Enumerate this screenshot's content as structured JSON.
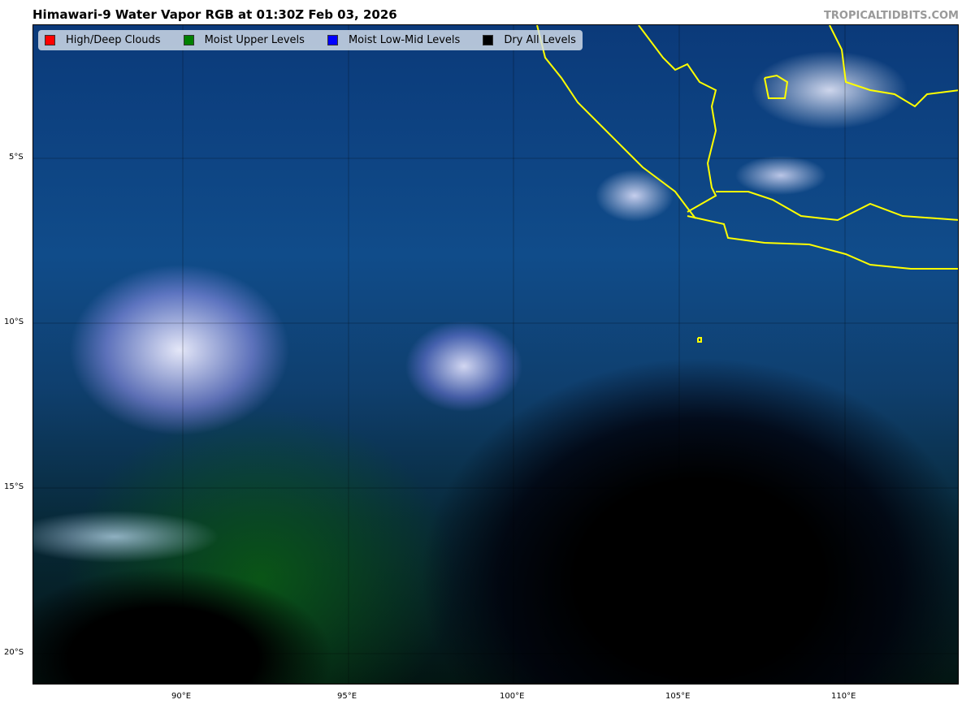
{
  "title": "Himawari-9 Water Vapor RGB at 01:30Z Feb 03, 2026",
  "credit": "TROPICALTIDBITS.COM",
  "legend": [
    {
      "label": "High/Deep Clouds",
      "color": "#ff0000"
    },
    {
      "label": "Moist Upper Levels",
      "color": "#008000"
    },
    {
      "label": "Moist Low-Mid Levels",
      "color": "#0000ff"
    },
    {
      "label": "Dry All Levels",
      "color": "#000000"
    }
  ],
  "lon_ticks": [
    "90°E",
    "95°E",
    "100°E",
    "105°E",
    "110°E"
  ],
  "lat_ticks": [
    "5°S",
    "10°S",
    "15°S",
    "20°S"
  ],
  "coastline_color": "#ffff00"
}
